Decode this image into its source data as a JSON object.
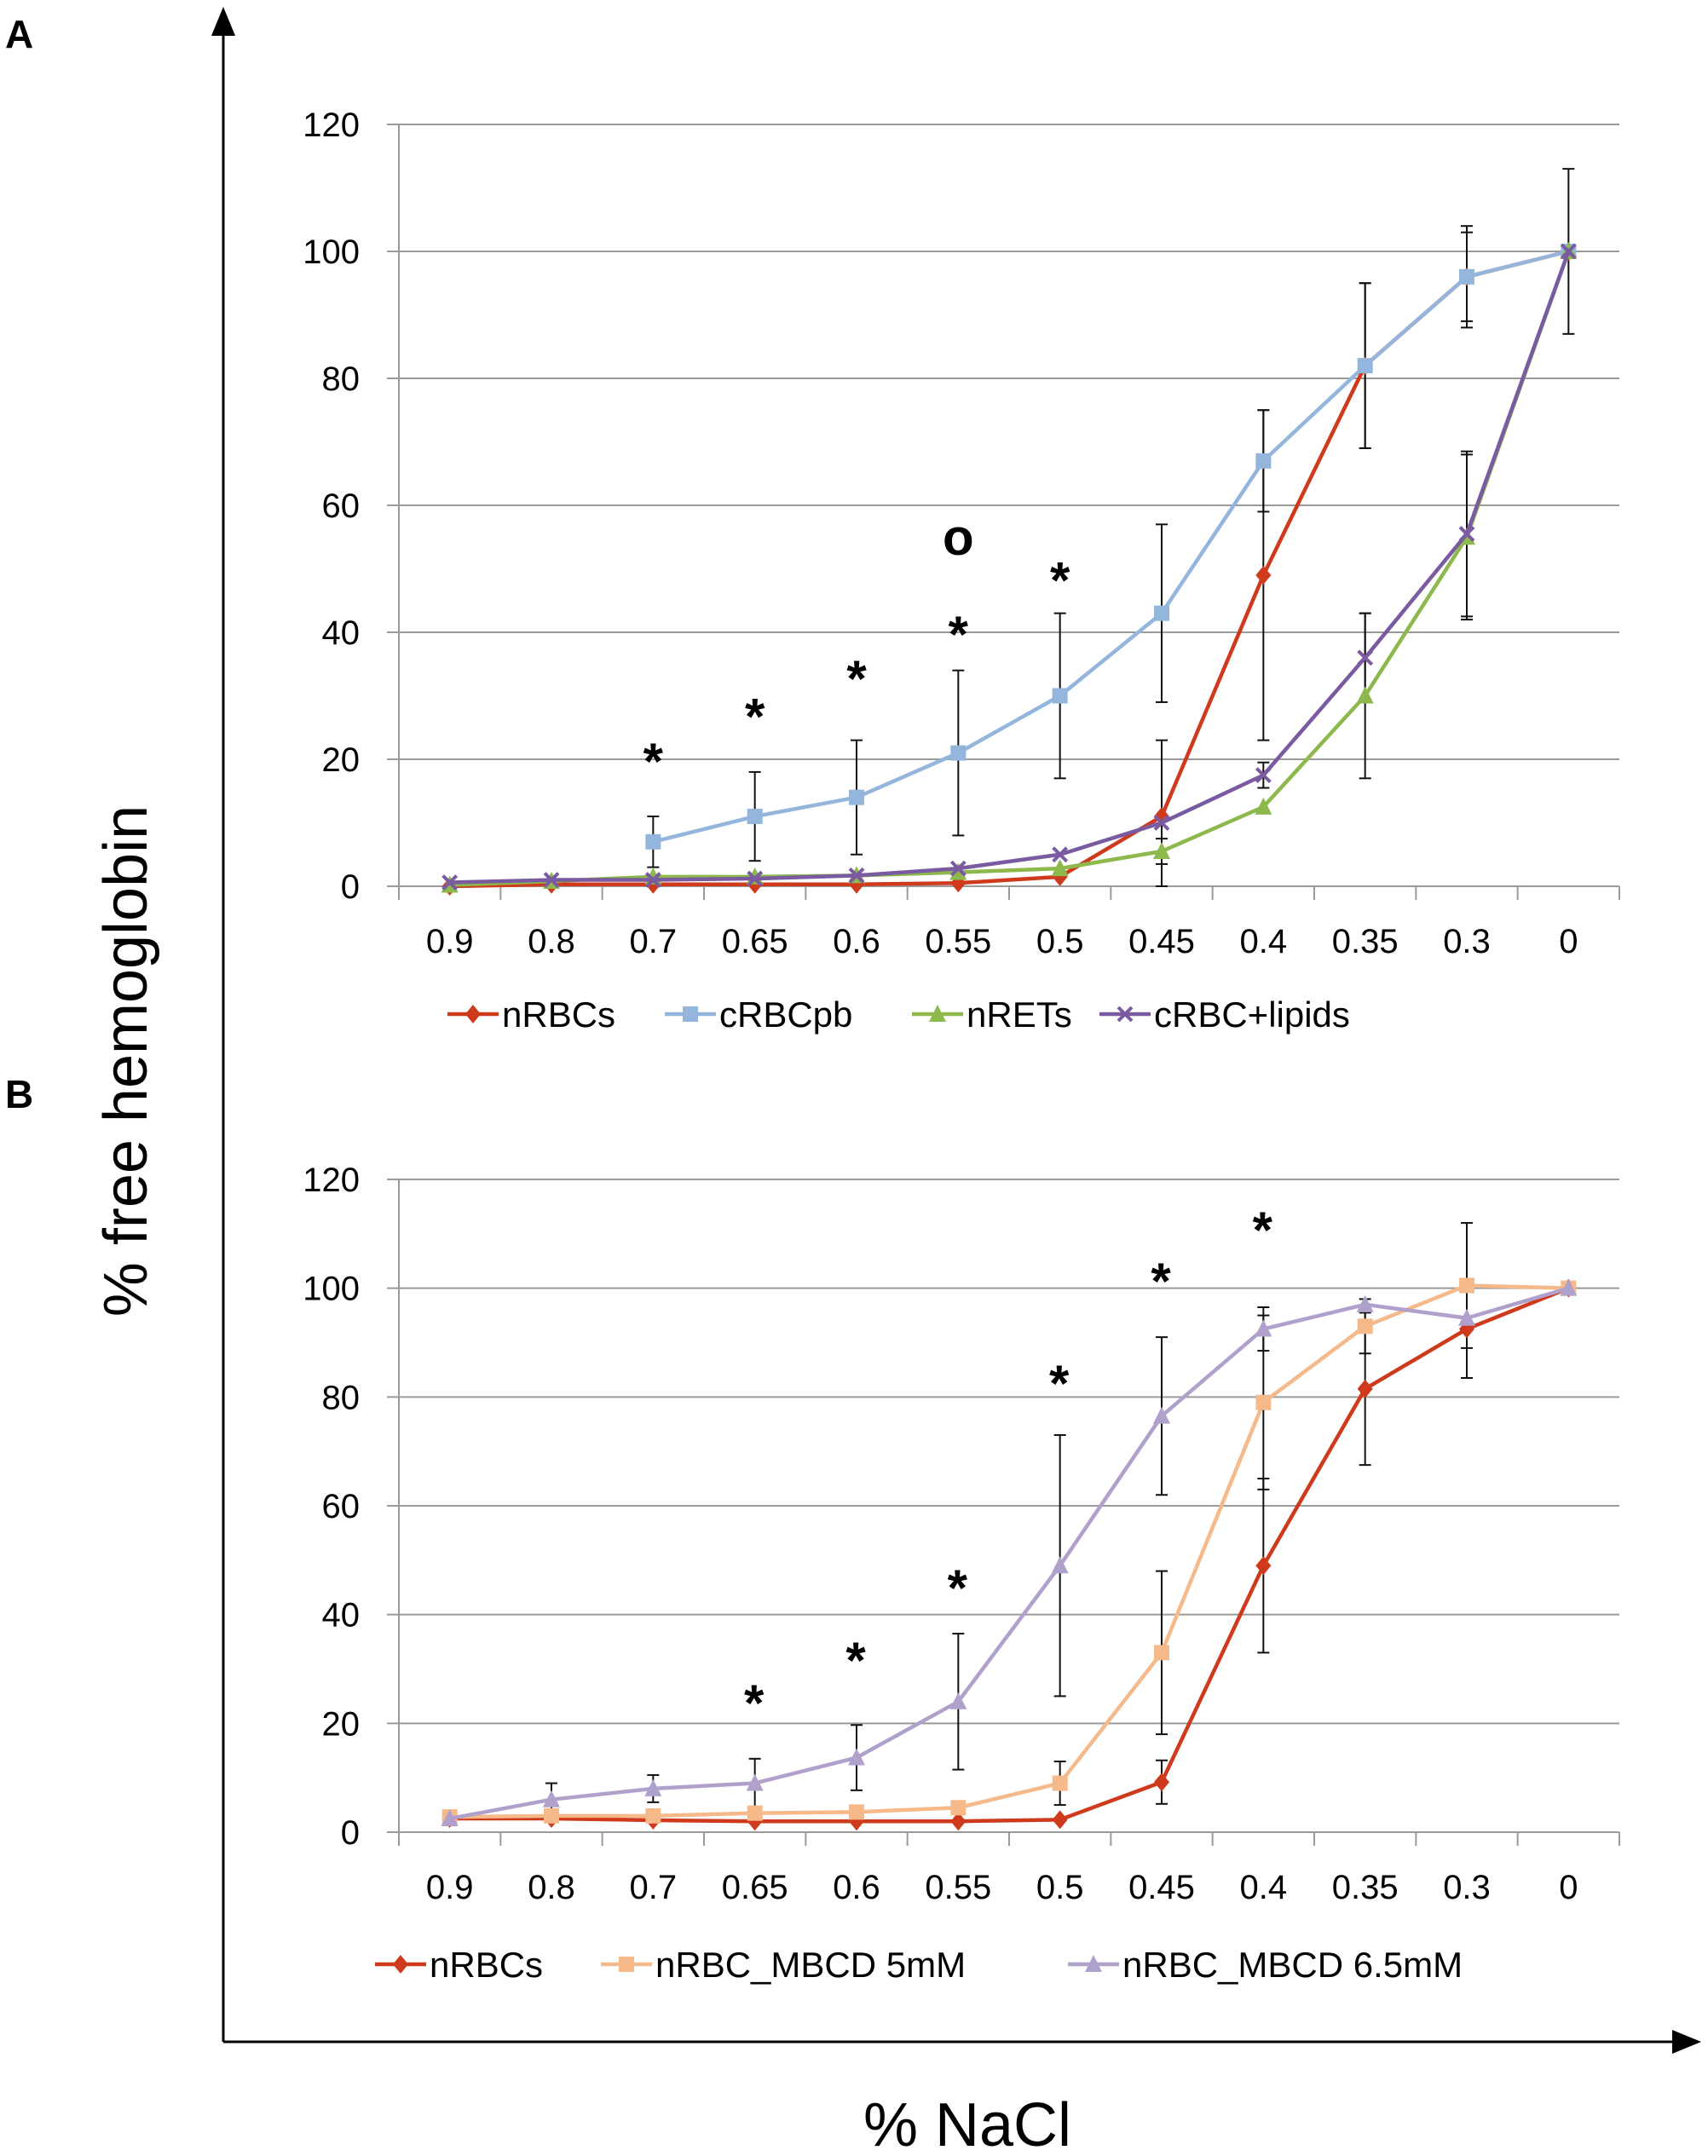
{
  "figure": {
    "panel_a_letter": "A",
    "panel_b_letter": "B",
    "ylabel": "% free hemoglobin",
    "xlabel": "% NaCl"
  },
  "chart_data": [
    {
      "type": "line",
      "panel": "A",
      "categories": [
        "0.9",
        "0.8",
        "0.7",
        "0.65",
        "0.6",
        "0.55",
        "0.5",
        "0.45",
        "0.4",
        "0.35",
        "0.3",
        "0"
      ],
      "ylim": [
        0,
        120
      ],
      "yticks": [
        0,
        20,
        40,
        60,
        80,
        100,
        120
      ],
      "grid": true,
      "legend": "bottom",
      "series": [
        {
          "name": "nRBCs",
          "color": "#d03a1c",
          "marker": "diamond",
          "values": [
            0,
            0.3,
            0.3,
            0.3,
            0.3,
            0.5,
            1.5,
            11,
            49,
            82,
            96,
            100
          ],
          "err": [
            null,
            null,
            null,
            null,
            null,
            null,
            null,
            12,
            26,
            13,
            7,
            null
          ]
        },
        {
          "name": "cRBCpb",
          "color": "#94b6dc",
          "marker": "square",
          "values": [
            null,
            null,
            7,
            11,
            14,
            21,
            30,
            43,
            67,
            82,
            96,
            100
          ],
          "err": [
            null,
            null,
            4,
            7,
            9,
            13,
            13,
            14,
            8,
            13,
            8,
            13
          ]
        },
        {
          "name": "nRETs",
          "color": "#8cb84c",
          "marker": "triangle",
          "values": [
            0.2,
            0.8,
            1.5,
            1.5,
            1.7,
            2.2,
            2.8,
            5.5,
            12.5,
            30,
            55,
            100
          ],
          "err": [
            null,
            null,
            null,
            null,
            null,
            null,
            null,
            2,
            null,
            13,
            13,
            null
          ]
        },
        {
          "name": "cRBC+lipids",
          "color": "#7a5aa0",
          "marker": "x",
          "values": [
            0.6,
            1,
            1,
            1.2,
            1.7,
            2.8,
            5,
            10,
            17.5,
            36,
            55.5,
            100
          ],
          "err": [
            null,
            null,
            null,
            null,
            null,
            null,
            null,
            null,
            2,
            7,
            13,
            null
          ]
        }
      ],
      "annotations": [
        {
          "text": "*",
          "category": "0.7",
          "y": 21.5
        },
        {
          "text": "*",
          "category": "0.65",
          "y": 28.5
        },
        {
          "text": "*",
          "category": "0.6",
          "y": 34.5
        },
        {
          "text": "*",
          "category": "0.55",
          "y": 41.5
        },
        {
          "text": "o",
          "category": "0.55",
          "y": 56.5
        },
        {
          "text": "*",
          "category": "0.5",
          "y": 50
        }
      ]
    },
    {
      "type": "line",
      "panel": "B",
      "categories": [
        "0.9",
        "0.8",
        "0.7",
        "0.65",
        "0.6",
        "0.55",
        "0.5",
        "0.45",
        "0.4",
        "0.35",
        "0.3",
        "0"
      ],
      "ylim": [
        0,
        120
      ],
      "yticks": [
        0,
        20,
        40,
        60,
        80,
        100,
        120
      ],
      "grid": true,
      "legend": "bottom",
      "series": [
        {
          "name": "nRBCs",
          "color": "#d03a1c",
          "marker": "diamond",
          "values": [
            2.5,
            2.5,
            2.2,
            2,
            2,
            2,
            2.3,
            9.2,
            49,
            81.5,
            92.5,
            100
          ],
          "err": [
            null,
            null,
            null,
            null,
            null,
            null,
            null,
            4,
            16,
            14,
            9,
            null
          ]
        },
        {
          "name": "nRBC_MBCD 5mM",
          "color": "#f5b98a",
          "marker": "square",
          "values": [
            2.8,
            3,
            3,
            3.5,
            3.7,
            4.5,
            9,
            33,
            79,
            93,
            100.5,
            100
          ],
          "err": [
            null,
            null,
            null,
            null,
            null,
            null,
            4,
            15,
            16,
            5,
            11.5,
            null
          ]
        },
        {
          "name": "nRBC_MBCD 6.5mM",
          "color": "#b0a0cc",
          "marker": "triangle",
          "values": [
            2.5,
            6,
            8,
            9,
            13.7,
            24,
            49,
            76.5,
            92.5,
            97,
            94.5,
            100
          ],
          "err": [
            null,
            3,
            2.5,
            4.5,
            6,
            12.5,
            24,
            14.5,
            4,
            null,
            null,
            null
          ]
        }
      ],
      "annotations": [
        {
          "text": "*",
          "category": "0.65",
          "y": -1
        },
        {
          "text": "*",
          "category": "0.6",
          "y": -2
        },
        {
          "text": "*",
          "category": "0.55",
          "y": -3
        },
        {
          "text": "*",
          "category": "0.5",
          "y": -4
        },
        {
          "text": "*",
          "category": "0.45",
          "y": -5
        },
        {
          "text": "*",
          "category": "0.4",
          "y": -6
        }
      ]
    }
  ]
}
